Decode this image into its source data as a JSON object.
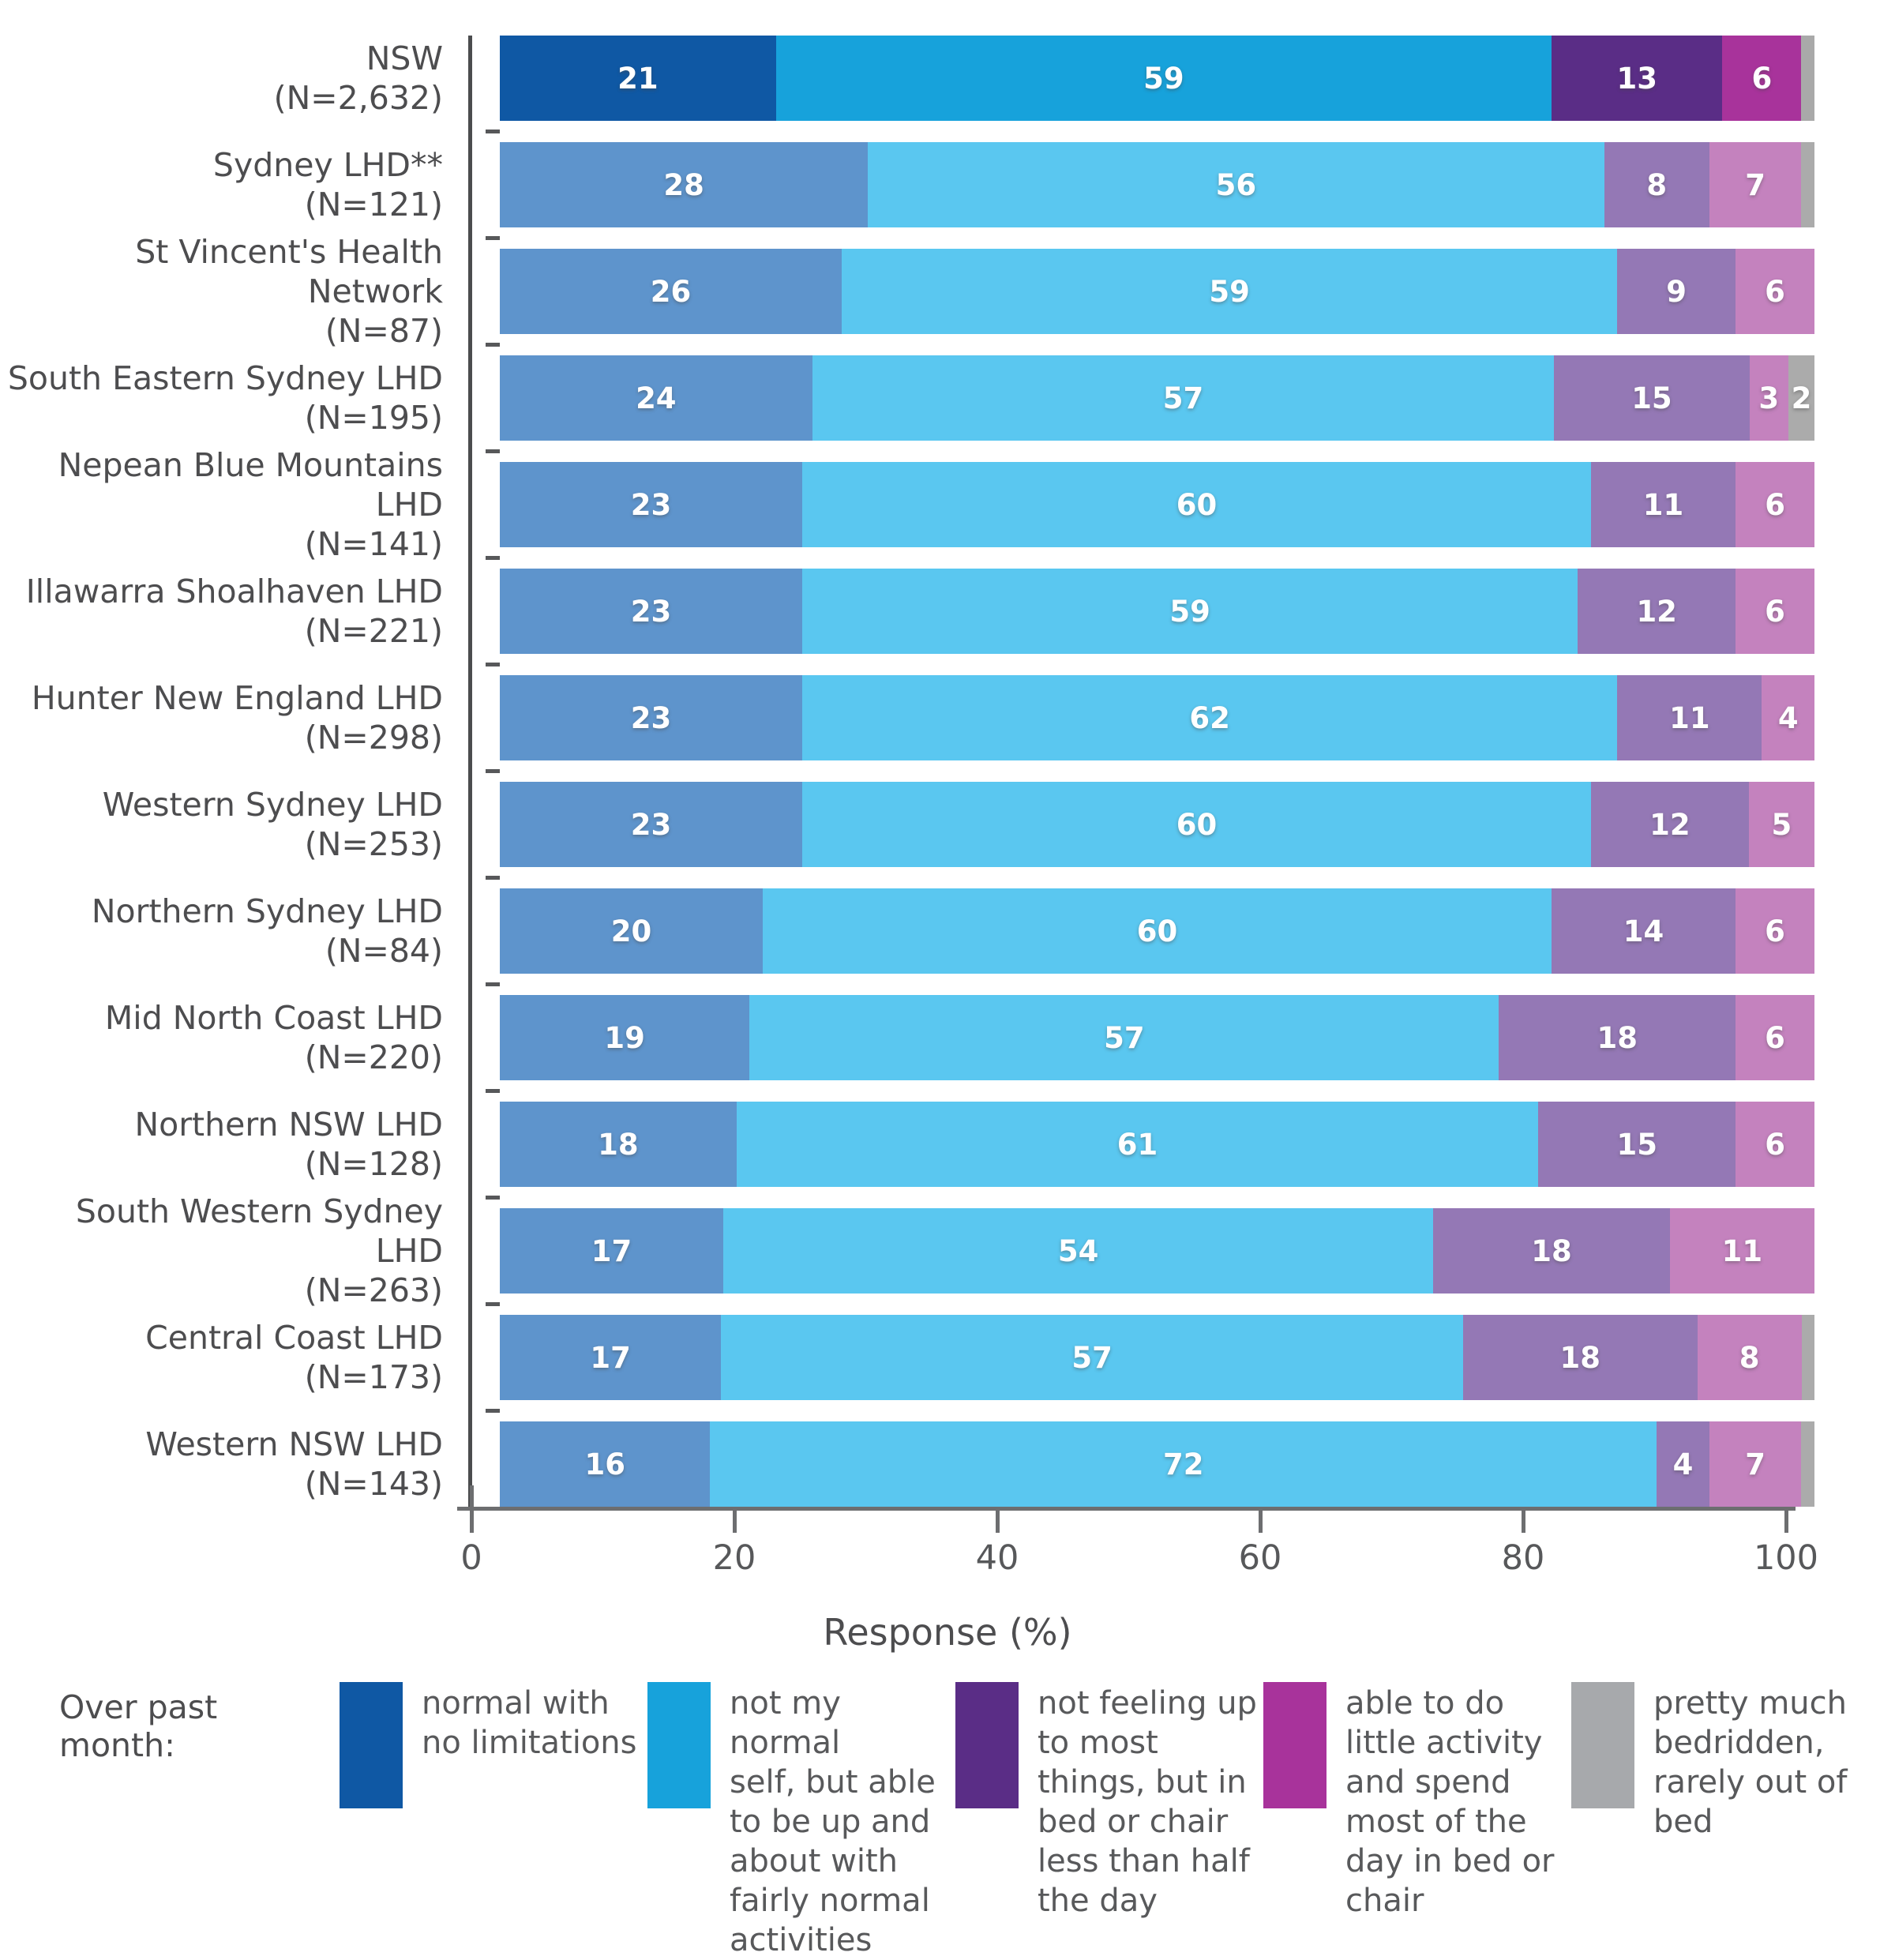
{
  "chart_data": {
    "type": "bar",
    "variant": "horizontal-stacked-percentage",
    "xlabel": "Response (%)",
    "xlim": [
      0,
      100
    ],
    "x_ticks": [
      0,
      20,
      40,
      60,
      80,
      100
    ],
    "grid": false,
    "legend_position": "bottom",
    "legend_title": "Over past month:",
    "series_names": [
      "normal with no limitations",
      "not my normal self, but able to be up and about with fairly normal activities",
      "not feeling up to most things, but in bed or chair less than half the day",
      "able to do little activity and spend most of the day in bed or chair",
      "pretty much bedridden, rarely out of bed"
    ],
    "palette": {
      "highlight": [
        "#0F58A4",
        "#17A2DB",
        "#5A2D86",
        "#A8339B",
        "#A9A9A9"
      ],
      "muted": [
        "#5E94CC",
        "#5AC7F0",
        "#9478B5",
        "#C482BE",
        "#ABABAB"
      ]
    },
    "label_min_value_to_show": 2,
    "rows": [
      {
        "label": "NSW",
        "n": "(N=2,632)",
        "highlight": true,
        "values": [
          21,
          59,
          13,
          6,
          1
        ]
      },
      {
        "label": "Sydney LHD**",
        "n": "(N=121)",
        "highlight": false,
        "values": [
          28,
          56,
          8,
          7,
          1
        ]
      },
      {
        "label": "St Vincent's Health Network",
        "n": "(N=87)",
        "highlight": false,
        "values": [
          26,
          59,
          9,
          6,
          0
        ]
      },
      {
        "label": "South Eastern Sydney LHD",
        "n": "(N=195)",
        "highlight": false,
        "values": [
          24,
          57,
          15,
          3,
          2
        ]
      },
      {
        "label": "Nepean Blue Mountains LHD",
        "n": "(N=141)",
        "highlight": false,
        "values": [
          23,
          60,
          11,
          6,
          0
        ]
      },
      {
        "label": "Illawarra Shoalhaven LHD",
        "n": "(N=221)",
        "highlight": false,
        "values": [
          23,
          59,
          12,
          6,
          0
        ]
      },
      {
        "label": "Hunter New England LHD",
        "n": "(N=298)",
        "highlight": false,
        "values": [
          23,
          62,
          11,
          4,
          0
        ]
      },
      {
        "label": "Western Sydney LHD",
        "n": "(N=253)",
        "highlight": false,
        "values": [
          23,
          60,
          12,
          5,
          0
        ]
      },
      {
        "label": "Northern Sydney LHD",
        "n": "(N=84)",
        "highlight": false,
        "values": [
          20,
          60,
          14,
          6,
          0
        ]
      },
      {
        "label": "Mid North Coast LHD",
        "n": "(N=220)",
        "highlight": false,
        "values": [
          19,
          57,
          18,
          6,
          0
        ]
      },
      {
        "label": "Northern NSW LHD",
        "n": "(N=128)",
        "highlight": false,
        "values": [
          18,
          61,
          15,
          6,
          0
        ]
      },
      {
        "label": "South Western Sydney LHD",
        "n": "(N=263)",
        "highlight": false,
        "values": [
          17,
          54,
          18,
          11,
          0
        ]
      },
      {
        "label": "Central Coast LHD",
        "n": "(N=173)",
        "highlight": false,
        "values": [
          17,
          57,
          18,
          8,
          1
        ]
      },
      {
        "label": "Western NSW LHD",
        "n": "(N=143)",
        "highlight": false,
        "values": [
          16,
          72,
          4,
          7,
          1
        ]
      }
    ],
    "legend": [
      {
        "label": "normal with\nno limitations",
        "color": "#0F58A4"
      },
      {
        "label": "not my normal\nself, but able\nto be up and\nabout with\nfairly normal\nactivities",
        "color": "#17A2DB"
      },
      {
        "label": "not feeling up\nto most\nthings, but in\nbed or chair\nless than half\nthe day",
        "color": "#5A2D86"
      },
      {
        "label": "able to do\nlittle activity\nand spend\nmost of the\nday in bed or\nchair",
        "color": "#A8339B"
      },
      {
        "label": "pretty much\nbedridden,\nrarely out of\nbed",
        "color": "#A7A9AC"
      }
    ]
  }
}
